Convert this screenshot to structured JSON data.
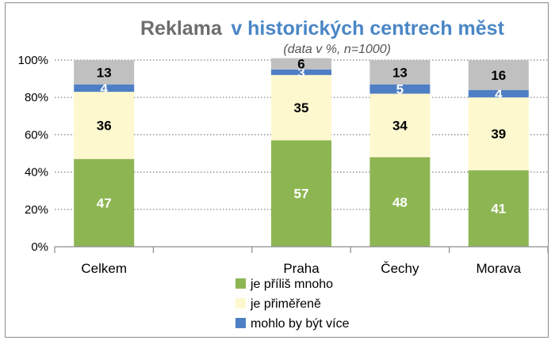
{
  "chart_data": {
    "type": "bar",
    "stacked": true,
    "title_part1": "Reklama",
    "title_part2": "v historických centrech měst",
    "subtitle": "(data v %, n=1000)",
    "categories": [
      "Celkem",
      "",
      "Praha",
      "Čechy",
      "Morava"
    ],
    "ylim": [
      0,
      100
    ],
    "yticks": [
      "0%",
      "20%",
      "40%",
      "60%",
      "80%",
      "100%"
    ],
    "grid": true,
    "legend_position": "bottom",
    "series": [
      {
        "name": "je příliš mnoho",
        "color": "#8db653",
        "label_color": "#ffffff",
        "values": [
          47,
          null,
          57,
          48,
          41
        ]
      },
      {
        "name": "je přiměřeně",
        "color": "#fef8cf",
        "label_color": "#000000",
        "values": [
          36,
          null,
          35,
          34,
          39
        ]
      },
      {
        "name": "mohlo by být více",
        "color": "#4e7fc4",
        "label_color": "#ffffff",
        "values": [
          4,
          null,
          3,
          5,
          4
        ]
      },
      {
        "name": "",
        "color": "#c0c0c0",
        "label_color": "#000000",
        "values": [
          13,
          null,
          6,
          13,
          16
        ]
      }
    ]
  }
}
